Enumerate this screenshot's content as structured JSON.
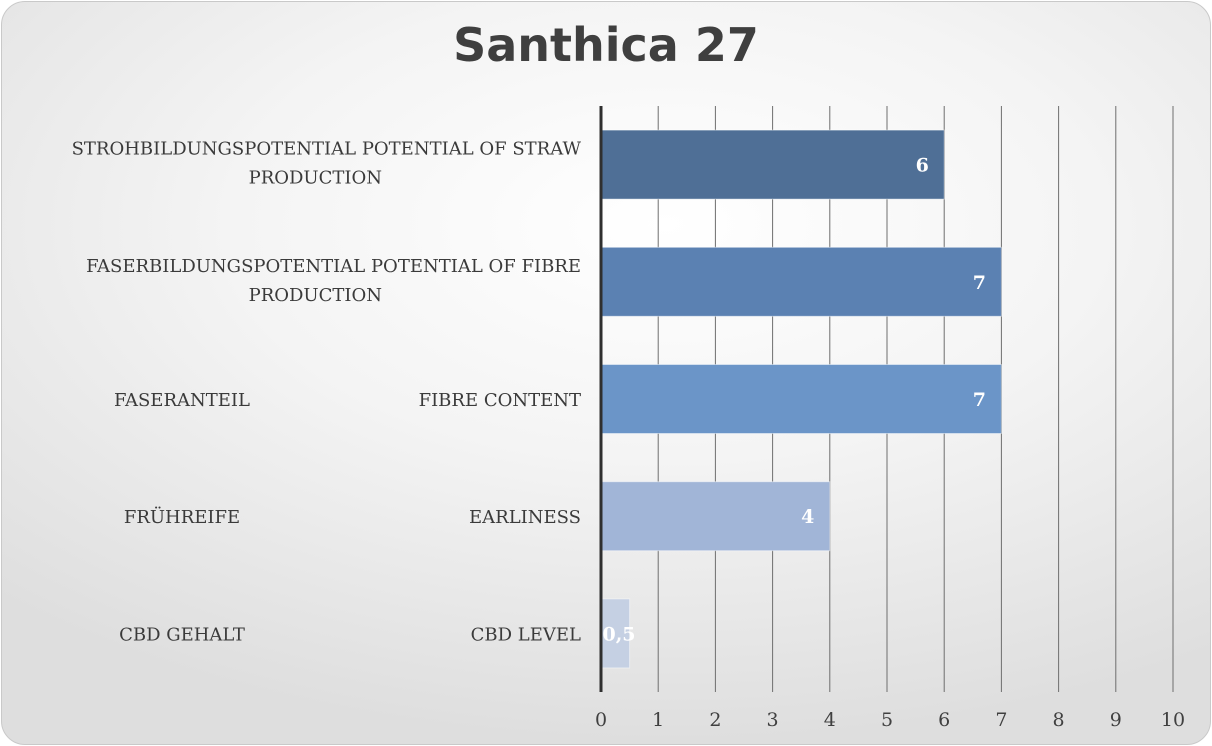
{
  "chart_data": {
    "type": "bar",
    "orientation": "horizontal",
    "title": "Santhica 27",
    "categories": [
      {
        "line1": "STROHBILDUNGSPOTENTIAL POTENTIAL OF STRAW",
        "line2": "PRODUCTION",
        "german": "",
        "english": ""
      },
      {
        "line1": "FASERBILDUNGSPOTENTIAL POTENTIAL OF FIBRE",
        "line2": "PRODUCTION",
        "german": "",
        "english": ""
      },
      {
        "line1": "",
        "line2": "",
        "german": "FASERANTEIL",
        "english": "FIBRE CONTENT"
      },
      {
        "line1": "",
        "line2": "",
        "german": "FRÜHREIFE",
        "english": "EARLINESS"
      },
      {
        "line1": "",
        "line2": "",
        "german": "CBD GEHALT",
        "english": "CBD LEVEL"
      }
    ],
    "values": [
      6,
      7,
      7,
      4,
      0.5
    ],
    "value_labels": [
      "6",
      "7",
      "7",
      "4",
      "0,5"
    ],
    "bar_colors": [
      "#4f6f96",
      "#5b81b2",
      "#6b95c8",
      "#a1b5d7",
      "#c5d0e3"
    ],
    "xlim": [
      0,
      10
    ],
    "xticks": [
      "0",
      "1",
      "2",
      "3",
      "4",
      "5",
      "6",
      "7",
      "8",
      "9",
      "10"
    ],
    "grid": true,
    "xlabel": "",
    "ylabel": ""
  }
}
